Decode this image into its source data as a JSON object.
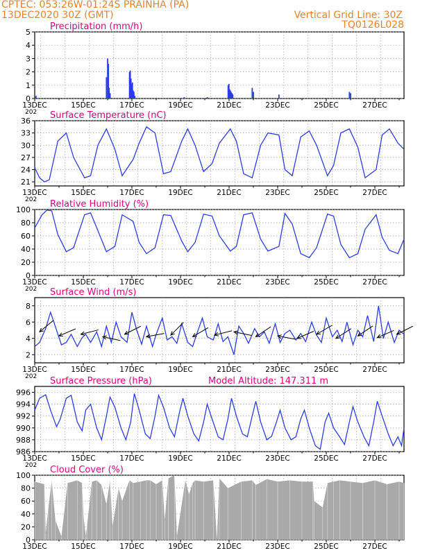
{
  "header": {
    "line1": "CPTEC:   053:26W-01:24S   PRAINHA (PA)",
    "line2": "13DEC2020 30Z (GMT)",
    "right1": "Vertical Grid Line: 30Z",
    "right2": "TQ0126L028"
  },
  "colors": {
    "header": "#e8822a",
    "title": "#e0007e",
    "series": "#2b3ce6",
    "cloud": "#a9a9a9",
    "grid": "#9a9a9a",
    "wind_arrow": "#000000"
  },
  "x_axis": {
    "ticks": [
      "13DEC",
      "15DEC",
      "17DEC",
      "19DEC",
      "21DEC",
      "23DEC",
      "25DEC",
      "27DEC"
    ],
    "tick_days": [
      0,
      2,
      4,
      6,
      8,
      10,
      12,
      14
    ],
    "year_fragment": "202",
    "range_days": [
      0,
      15.2
    ]
  },
  "chart_data": [
    {
      "type": "bar",
      "title": "Precipitation (mm/h)",
      "ylim": [
        0,
        5
      ],
      "yticks": [
        "0",
        "1",
        "2",
        "3",
        "4",
        "5"
      ],
      "grid": true,
      "x": [
        0.05,
        2.95,
        3.0,
        3.03,
        3.06,
        3.1,
        3.9,
        3.93,
        3.96,
        3.99,
        4.02,
        4.05,
        4.08,
        4.12,
        6.15,
        7.1,
        7.96,
        7.99,
        8.02,
        8.05,
        8.08,
        8.12,
        8.15,
        8.95,
        9.0,
        10.05,
        12.95,
        13.0
      ],
      "values": [
        0.2,
        1.6,
        3.0,
        2.6,
        0.8,
        0.4,
        2.0,
        2.1,
        1.5,
        1.1,
        1.2,
        0.6,
        0.5,
        0.2,
        0.1,
        0.1,
        1.0,
        1.1,
        0.7,
        0.6,
        0.5,
        0.4,
        0.3,
        0.8,
        0.5,
        0.3,
        0.5,
        0.4
      ]
    },
    {
      "type": "line",
      "title": "Surface Temperature (nC)",
      "ylim": [
        20,
        36
      ],
      "yticks": [
        "21",
        "24",
        "27",
        "30",
        "33",
        "36"
      ],
      "ytick_values": [
        21,
        24,
        27,
        30,
        33,
        36
      ],
      "grid": true,
      "x": [
        0,
        0.2,
        0.4,
        0.6,
        0.95,
        1.3,
        1.6,
        2.05,
        2.3,
        2.6,
        2.95,
        3.3,
        3.6,
        4.05,
        4.3,
        4.6,
        4.95,
        5.3,
        5.6,
        6.05,
        6.3,
        6.6,
        6.95,
        7.3,
        7.6,
        8.05,
        8.3,
        8.6,
        8.95,
        9.3,
        9.6,
        10.05,
        10.3,
        10.6,
        10.95,
        11.3,
        11.6,
        12.05,
        12.3,
        12.6,
        12.95,
        13.3,
        13.6,
        14.05,
        14.3,
        14.6,
        14.95,
        15.2
      ],
      "values": [
        24.5,
        22.0,
        21.0,
        21.5,
        31.0,
        33.0,
        27.0,
        22.0,
        22.5,
        30.0,
        34.0,
        29.0,
        22.5,
        26.5,
        30.5,
        34.5,
        33.0,
        23.0,
        23.5,
        31.0,
        34.0,
        30.0,
        23.5,
        25.5,
        30.5,
        34.0,
        31.0,
        23.0,
        22.0,
        30.0,
        33.0,
        32.5,
        24.0,
        22.5,
        32.0,
        33.5,
        30.0,
        22.5,
        25.0,
        33.0,
        34.0,
        29.5,
        22.0,
        24.0,
        32.5,
        34.0,
        30.5,
        29.0
      ]
    },
    {
      "type": "line",
      "title": "Relative Humidity (%)",
      "ylim": [
        0,
        100
      ],
      "yticks": [
        "0",
        "20",
        "40",
        "60",
        "80",
        "100"
      ],
      "grid": true,
      "x": [
        0,
        0.3,
        0.5,
        0.7,
        0.95,
        1.3,
        1.6,
        2.05,
        2.3,
        2.6,
        2.95,
        3.3,
        3.6,
        4.05,
        4.3,
        4.6,
        4.95,
        5.3,
        5.6,
        6.05,
        6.3,
        6.6,
        6.95,
        7.3,
        7.6,
        8.05,
        8.3,
        8.6,
        8.95,
        9.3,
        9.6,
        10.05,
        10.3,
        10.6,
        10.95,
        11.3,
        11.6,
        12.05,
        12.3,
        12.6,
        12.95,
        13.3,
        13.6,
        14.05,
        14.3,
        14.6,
        14.95,
        15.2
      ],
      "values": [
        72,
        92,
        99,
        98,
        62,
        36,
        42,
        92,
        95,
        68,
        36,
        44,
        92,
        82,
        50,
        33,
        42,
        92,
        91,
        52,
        36,
        50,
        93,
        90,
        60,
        37,
        44,
        92,
        95,
        55,
        37,
        44,
        94,
        78,
        33,
        27,
        42,
        93,
        90,
        47,
        27,
        33,
        70,
        92,
        58,
        38,
        33,
        55
      ]
    },
    {
      "type": "line",
      "title": "Surface Wind (m/s)",
      "ylim": [
        1,
        9
      ],
      "yticks": [
        "2",
        "4",
        "6",
        "8"
      ],
      "ytick_values": [
        2,
        4,
        6,
        8
      ],
      "grid": true,
      "x": [
        0,
        0.2,
        0.45,
        0.65,
        0.9,
        1.1,
        1.3,
        1.5,
        1.75,
        1.95,
        2.1,
        2.3,
        2.55,
        2.75,
        2.95,
        3.15,
        3.35,
        3.55,
        3.8,
        4.0,
        4.2,
        4.4,
        4.6,
        4.85,
        5.0,
        5.25,
        5.45,
        5.65,
        5.85,
        6.05,
        6.3,
        6.5,
        6.7,
        6.9,
        7.1,
        7.35,
        7.55,
        7.75,
        7.95,
        8.2,
        8.4,
        8.6,
        8.8,
        9.05,
        9.25,
        9.45,
        9.65,
        9.9,
        10.1,
        10.3,
        10.5,
        10.75,
        10.95,
        11.15,
        11.4,
        11.6,
        11.8,
        12.0,
        12.25,
        12.45,
        12.65,
        12.85,
        13.1,
        13.3,
        13.5,
        13.7,
        13.95,
        14.15,
        14.35,
        14.55,
        14.8,
        15.0,
        15.2
      ],
      "values": [
        3.0,
        3.5,
        5.2,
        7.2,
        5.0,
        3.2,
        3.5,
        4.5,
        3.0,
        4.1,
        4.5,
        3.5,
        4.8,
        3.0,
        5.5,
        3.5,
        6.0,
        4.2,
        3.5,
        7.2,
        5.0,
        3.3,
        5.5,
        3.0,
        4.5,
        6.5,
        3.8,
        4.2,
        3.4,
        5.8,
        3.5,
        3.0,
        4.8,
        6.5,
        4.2,
        3.8,
        5.8,
        3.6,
        4.2,
        2.0,
        5.5,
        4.6,
        3.4,
        5.2,
        4.2,
        4.8,
        3.4,
        5.8,
        3.5,
        4.6,
        5.0,
        3.8,
        4.6,
        3.6,
        6.0,
        4.4,
        3.5,
        6.5,
        4.2,
        5.0,
        3.6,
        6.0,
        3.2,
        5.0,
        4.2,
        6.8,
        3.6,
        8.0,
        4.0,
        6.0,
        3.5,
        5.0,
        4.5
      ]
    },
    {
      "type": "line",
      "title": "Surface Pressure (hPa)",
      "annotation": "Model Altitude: 147.311  m",
      "ylim": [
        986,
        997
      ],
      "yticks": [
        "986",
        "988",
        "990",
        "992",
        "994",
        "996"
      ],
      "ytick_values": [
        986,
        988,
        990,
        992,
        994,
        996
      ],
      "grid": true,
      "x": [
        0,
        0.2,
        0.45,
        0.65,
        0.9,
        1.05,
        1.3,
        1.5,
        1.75,
        1.95,
        2.1,
        2.3,
        2.55,
        2.75,
        2.95,
        3.1,
        3.3,
        3.55,
        3.75,
        3.95,
        4.1,
        4.3,
        4.55,
        4.75,
        4.95,
        5.1,
        5.3,
        5.55,
        5.75,
        5.95,
        6.1,
        6.3,
        6.55,
        6.75,
        6.95,
        7.1,
        7.3,
        7.55,
        7.75,
        7.95,
        8.1,
        8.3,
        8.55,
        8.75,
        8.95,
        9.1,
        9.3,
        9.55,
        9.75,
        9.95,
        10.1,
        10.3,
        10.55,
        10.75,
        10.95,
        11.1,
        11.3,
        11.55,
        11.75,
        11.95,
        12.1,
        12.3,
        12.55,
        12.75,
        12.95,
        13.1,
        13.3,
        13.55,
        13.75,
        13.95,
        14.1,
        14.3,
        14.55,
        14.75,
        14.95,
        15.1,
        15.2
      ],
      "values": [
        993,
        995,
        995.6,
        993,
        990.2,
        991.5,
        995,
        995.5,
        991,
        989.5,
        993,
        994,
        990,
        988,
        992,
        995.2,
        993.5,
        990,
        988,
        991,
        995.8,
        993,
        989,
        988.2,
        992,
        995.5,
        993.5,
        990,
        988.5,
        992.5,
        995,
        992,
        989,
        987.8,
        991,
        994,
        991.5,
        988.5,
        988,
        991.5,
        995,
        992,
        989,
        988.5,
        992,
        994.5,
        991,
        988,
        988.6,
        991,
        993,
        990,
        988,
        988.5,
        991.5,
        993,
        990,
        987,
        986.4,
        991,
        992.5,
        990,
        988.5,
        987.2,
        991,
        993.6,
        991,
        988.5,
        987,
        991,
        994.5,
        992,
        989,
        987,
        988.5,
        987,
        990
      ]
    },
    {
      "type": "area",
      "title": "Cloud Cover (%)",
      "ylim": [
        0,
        100
      ],
      "yticks": [
        "0",
        "20",
        "40",
        "60",
        "80",
        "100"
      ],
      "grid": true,
      "x": [
        0,
        0.4,
        0.45,
        0.55,
        0.7,
        0.85,
        1.1,
        1.35,
        1.75,
        1.95,
        2.0,
        2.1,
        2.15,
        2.35,
        2.55,
        2.75,
        2.95,
        3.1,
        3.2,
        3.45,
        3.6,
        3.9,
        4.05,
        4.35,
        4.6,
        4.75,
        5.0,
        5.25,
        5.35,
        5.5,
        5.75,
        5.85,
        6.2,
        6.35,
        6.5,
        6.6,
        6.95,
        7.35,
        7.5,
        7.6,
        7.95,
        8.5,
        8.95,
        9.1,
        9.55,
        10.0,
        10.5,
        11.0,
        11.45,
        11.5,
        11.85,
        12.05,
        12.3,
        12.55,
        13.0,
        13.5,
        14.0,
        14.5,
        15.0,
        15.2
      ],
      "values": [
        90,
        86,
        10,
        45,
        92,
        30,
        5,
        88,
        92,
        88,
        40,
        5,
        20,
        90,
        92,
        85,
        55,
        92,
        20,
        80,
        60,
        92,
        88,
        90,
        92,
        92,
        86,
        92,
        30,
        95,
        100,
        5,
        92,
        70,
        88,
        92,
        90,
        92,
        0,
        95,
        80,
        90,
        92,
        85,
        94,
        90,
        92,
        90,
        90,
        60,
        50,
        88,
        90,
        92,
        90,
        88,
        92,
        86,
        90,
        88
      ]
    }
  ],
  "wind_arrows": {
    "x": [
      0.2,
      1.0,
      1.9,
      2.8,
      3.7,
      4.6,
      5.6,
      6.5,
      7.4,
      8.2,
      9.1,
      10.0,
      10.8,
      11.6,
      12.4,
      13.3,
      14.1,
      14.9
    ],
    "y": [
      4.8,
      4.3,
      4.5,
      4.2,
      4.5,
      4.2,
      4.4,
      4.2,
      4.4,
      4.8,
      4.2,
      4.3,
      4.0,
      4.5,
      4.0,
      4.3,
      4.1,
      4.5
    ],
    "dir_x": [
      0.6,
      0.7,
      0.8,
      0.7,
      0.6,
      0.8,
      0.5,
      0.6,
      0.8,
      0.5,
      0.6,
      0.8,
      0.7,
      0.6,
      0.7,
      0.6,
      0.7,
      0.8
    ],
    "dir_y": [
      -0.5,
      -0.3,
      -0.2,
      0.15,
      -0.3,
      -0.15,
      -0.5,
      -0.35,
      -0.2,
      0.1,
      -0.4,
      0.15,
      -0.3,
      -0.35,
      -0.45,
      -0.4,
      -0.3,
      -0.4
    ]
  }
}
